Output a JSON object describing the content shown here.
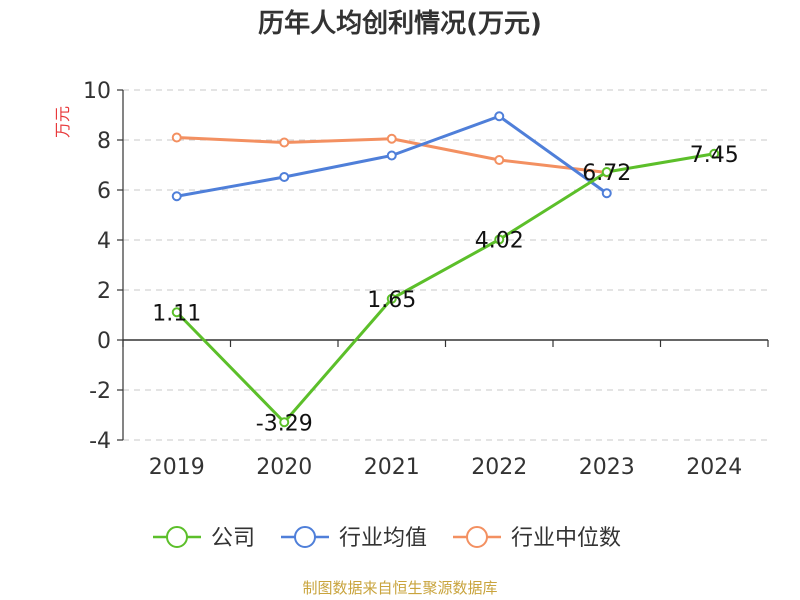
{
  "chart_data": {
    "type": "line",
    "title": "历年人均创利情况(万元)",
    "ylabel": "万元",
    "xlabel": "",
    "categories": [
      "2019",
      "2020",
      "2021",
      "2022",
      "2023",
      "2024"
    ],
    "ylim": [
      -4,
      10
    ],
    "yticks": [
      -4,
      -2,
      0,
      2,
      4,
      6,
      8,
      10
    ],
    "grid": true,
    "legend_position": "bottom",
    "series": [
      {
        "name": "公司",
        "color": "#5cbf2a",
        "values": [
          1.11,
          -3.29,
          1.65,
          4.02,
          6.72,
          7.45
        ],
        "labels": [
          "1.11",
          "-3.29",
          "1.65",
          "4.02",
          "6.72",
          "7.45"
        ]
      },
      {
        "name": "行业均值",
        "color": "#4f7fd9",
        "values": [
          5.75,
          6.52,
          7.38,
          8.95,
          5.87,
          null
        ]
      },
      {
        "name": "行业中位数",
        "color": "#f39061",
        "values": [
          8.1,
          7.9,
          8.05,
          7.2,
          6.7,
          null
        ]
      }
    ]
  },
  "footer": {
    "source": "制图数据来自恒生聚源数据库"
  }
}
